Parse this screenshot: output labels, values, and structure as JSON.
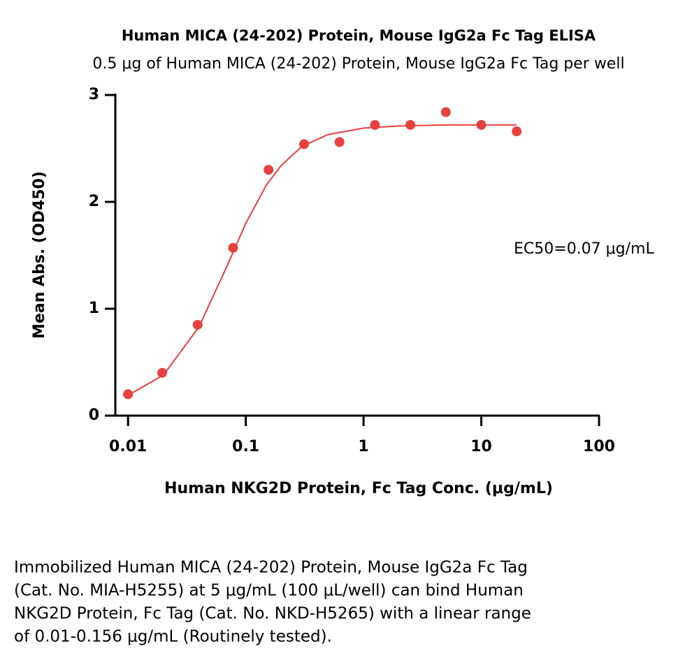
{
  "chart_data": {
    "type": "scatter",
    "title": "Human MICA (24-202) Protein, Mouse IgG2a Fc Tag ELISA",
    "subtitle": "0.5 μg of Human MICA (24-202) Protein, Mouse IgG2a Fc Tag per well",
    "x_label": "Human NKG2D Protein, Fc Tag Conc. (μg/mL)",
    "y_label": "Mean Abs. (OD450)",
    "annotation": "EC50=0.07 μg/mL",
    "xscale": "log",
    "xlim": [
      0.0078,
      100
    ],
    "xticks": [
      0.01,
      0.1,
      1,
      10,
      100
    ],
    "ylim": [
      0,
      3
    ],
    "yticks": [
      0,
      1,
      2,
      3
    ],
    "series": [
      {
        "style": "points",
        "color": "#e8403f",
        "x": [
          0.01,
          0.0195,
          0.039,
          0.078,
          0.156,
          0.3125,
          0.625,
          1.25,
          2.5,
          5,
          10,
          20
        ],
        "values": [
          0.2,
          0.4,
          0.85,
          1.57,
          2.3,
          2.54,
          2.56,
          2.72,
          2.72,
          2.84,
          2.72,
          2.66
        ]
      },
      {
        "style": "line",
        "color": "#e8403f",
        "x": [
          0.01,
          0.02,
          0.04,
          0.07,
          0.1,
          0.15,
          0.2,
          0.3,
          0.5,
          1,
          2,
          5,
          10,
          20
        ],
        "values": [
          0.19,
          0.38,
          0.83,
          1.41,
          1.8,
          2.16,
          2.34,
          2.52,
          2.63,
          2.69,
          2.71,
          2.72,
          2.72,
          2.72
        ]
      }
    ],
    "caption": [
      "Immobilized Human MICA (24-202) Protein, Mouse IgG2a Fc Tag",
      "(Cat. No. MIA-H5255) at 5 μg/mL (100 μL/well) can bind Human",
      "NKG2D Protein, Fc Tag (Cat. No. NKD-H5265) with a linear range",
      "of 0.01-0.156 μg/mL (Routinely tested)."
    ]
  }
}
